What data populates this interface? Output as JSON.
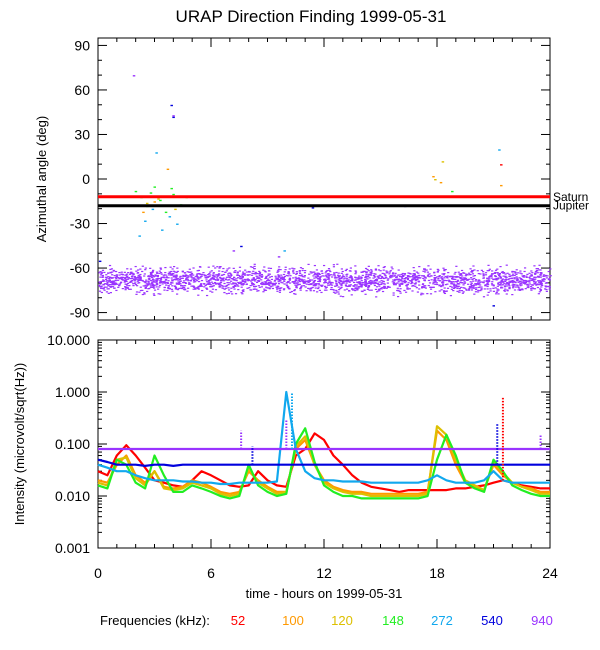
{
  "chart_data": {
    "title": "URAP Direction Finding  1999-05-31",
    "type": "scatter",
    "xlabel": "time - hours on 1999-05-31",
    "xlim": [
      0,
      24
    ],
    "xticks": [
      0,
      6,
      12,
      18,
      24
    ],
    "legend": {
      "label": "Frequencies (kHz):",
      "placement": "bottom",
      "entries": [
        {
          "name": "52",
          "color": "#ff0000"
        },
        {
          "name": "100",
          "color": "#ff9900"
        },
        {
          "name": "120",
          "color": "#ddc000"
        },
        {
          "name": "148",
          "color": "#22ee22"
        },
        {
          "name": "272",
          "color": "#11a8ee"
        },
        {
          "name": "540",
          "color": "#0000dd"
        },
        {
          "name": "940",
          "color": "#9933ff"
        }
      ]
    },
    "panels": [
      {
        "name": "azimuth",
        "type": "scatter",
        "ylabel": "Azimuthal angle (deg)",
        "ylim": [
          -95,
          95
        ],
        "yticks": [
          "90",
          "60",
          "30",
          "0",
          "-30",
          "-60",
          "-90"
        ],
        "reference_lines": [
          {
            "name": "Saturn",
            "y": -12,
            "color": "#ff0000"
          },
          {
            "name": "Jupiter",
            "y": -18,
            "color": "#000000"
          }
        ],
        "series": [
          {
            "name": "940",
            "description": "dense band of points",
            "x_range": [
              0,
              24
            ],
            "y_center": -68,
            "y_spread": 6
          },
          {
            "name": "148",
            "points": [
              [
                2.0,
                -8
              ],
              [
                2.3,
                -12
              ],
              [
                2.6,
                -18
              ],
              [
                3.0,
                -5
              ],
              [
                3.3,
                -14
              ],
              [
                3.6,
                -22
              ],
              [
                4.0,
                -10
              ],
              [
                4.4,
                -17
              ],
              [
                4.7,
                -12
              ],
              [
                2.8,
                -9
              ],
              [
                3.9,
                -6
              ],
              [
                18.8,
                -8
              ]
            ]
          },
          {
            "name": "272",
            "points": [
              [
                2.2,
                -38
              ],
              [
                2.5,
                -28
              ],
              [
                2.9,
                -20
              ],
              [
                3.1,
                18
              ],
              [
                3.4,
                -34
              ],
              [
                3.8,
                -25
              ],
              [
                4.2,
                -30
              ],
              [
                21.3,
                20
              ],
              [
                9.9,
                -48
              ]
            ]
          },
          {
            "name": "100",
            "points": [
              [
                2.4,
                -22
              ],
              [
                3.0,
                -15
              ],
              [
                3.7,
                7
              ],
              [
                17.8,
                2
              ],
              [
                18.2,
                -2
              ],
              [
                21.4,
                -4
              ]
            ]
          },
          {
            "name": "120",
            "points": [
              [
                2.6,
                -16
              ],
              [
                3.2,
                -13
              ],
              [
                4.1,
                -20
              ],
              [
                17.9,
                0
              ],
              [
                18.3,
                12
              ]
            ]
          },
          {
            "name": "540",
            "points": [
              [
                3.9,
                50
              ],
              [
                4.0,
                42
              ],
              [
                7.6,
                -45
              ],
              [
                16.3,
                -18
              ],
              [
                11.4,
                -19
              ],
              [
                21.0,
                -85
              ],
              [
                0.1,
                -55
              ]
            ]
          },
          {
            "name": "940",
            "points": [
              [
                1.9,
                70
              ],
              [
                4.0,
                43
              ],
              [
                7.2,
                -48
              ],
              [
                9.6,
                -52
              ],
              [
                13.9,
                -70
              ]
            ]
          },
          {
            "name": "52",
            "points": [
              [
                21.4,
                10
              ]
            ]
          }
        ]
      },
      {
        "name": "intensity",
        "type": "line",
        "yscale": "log",
        "ylabel": "Intensity (microvolt/sqrt(Hz))",
        "ylim": [
          0.001,
          10.0
        ],
        "yticks": [
          "10.000",
          "1.000",
          "0.100",
          "0.010",
          "0.001"
        ],
        "x": [
          0,
          0.5,
          1,
          1.5,
          2,
          2.5,
          3,
          3.5,
          4,
          4.5,
          5,
          5.5,
          6,
          6.5,
          7,
          7.5,
          8,
          8.5,
          9,
          9.5,
          10,
          10.5,
          11,
          11.5,
          12,
          12.5,
          13,
          13.5,
          14,
          14.5,
          15,
          15.5,
          16,
          16.5,
          17,
          17.5,
          18,
          18.5,
          19,
          19.5,
          20,
          20.5,
          21,
          21.5,
          22,
          22.5,
          23,
          23.5,
          24
        ],
        "series": [
          {
            "name": "52",
            "values": [
              0.03,
              0.025,
              0.06,
              0.095,
              0.06,
              0.035,
              0.02,
              0.018,
              0.016,
              0.015,
              0.02,
              0.03,
              0.025,
              0.02,
              0.016,
              0.015,
              0.016,
              0.03,
              0.02,
              0.016,
              0.015,
              0.06,
              0.08,
              0.16,
              0.12,
              0.06,
              0.04,
              0.025,
              0.018,
              0.015,
              0.014,
              0.013,
              0.012,
              0.013,
              0.013,
              0.013,
              0.013,
              0.013,
              0.014,
              0.014,
              0.015,
              0.016,
              0.018,
              0.02,
              0.018,
              0.016,
              0.015,
              0.014,
              0.014
            ]
          },
          {
            "name": "100",
            "values": [
              0.02,
              0.018,
              0.04,
              0.06,
              0.025,
              0.018,
              0.03,
              0.015,
              0.014,
              0.015,
              0.02,
              0.018,
              0.015,
              0.012,
              0.011,
              0.012,
              0.03,
              0.02,
              0.015,
              0.012,
              0.012,
              0.08,
              0.12,
              0.04,
              0.02,
              0.015,
              0.013,
              0.012,
              0.012,
              0.011,
              0.011,
              0.011,
              0.011,
              0.011,
              0.011,
              0.012,
              0.18,
              0.12,
              0.04,
              0.018,
              0.015,
              0.013,
              0.04,
              0.025,
              0.018,
              0.015,
              0.014,
              0.012,
              0.012
            ]
          },
          {
            "name": "120",
            "values": [
              0.018,
              0.016,
              0.05,
              0.055,
              0.022,
              0.016,
              0.03,
              0.014,
              0.013,
              0.014,
              0.018,
              0.016,
              0.014,
              0.011,
              0.01,
              0.011,
              0.035,
              0.018,
              0.014,
              0.011,
              0.012,
              0.09,
              0.14,
              0.04,
              0.018,
              0.014,
              0.012,
              0.011,
              0.011,
              0.01,
              0.01,
              0.01,
              0.01,
              0.01,
              0.01,
              0.011,
              0.22,
              0.15,
              0.05,
              0.02,
              0.016,
              0.013,
              0.045,
              0.028,
              0.018,
              0.015,
              0.013,
              0.011,
              0.011
            ]
          },
          {
            "name": "148",
            "values": [
              0.016,
              0.014,
              0.05,
              0.04,
              0.018,
              0.014,
              0.06,
              0.025,
              0.012,
              0.012,
              0.016,
              0.014,
              0.012,
              0.01,
              0.009,
              0.01,
              0.04,
              0.016,
              0.012,
              0.01,
              0.011,
              0.1,
              0.2,
              0.045,
              0.016,
              0.012,
              0.01,
              0.01,
              0.009,
              0.009,
              0.009,
              0.009,
              0.009,
              0.009,
              0.009,
              0.01,
              0.05,
              0.15,
              0.06,
              0.018,
              0.014,
              0.012,
              0.05,
              0.03,
              0.016,
              0.013,
              0.011,
              0.01,
              0.01
            ]
          },
          {
            "name": "272",
            "values": [
              0.04,
              0.035,
              0.03,
              0.03,
              0.025,
              0.022,
              0.02,
              0.02,
              0.02,
              0.019,
              0.019,
              0.018,
              0.018,
              0.017,
              0.017,
              0.018,
              0.018,
              0.018,
              0.018,
              0.019,
              1.0,
              0.08,
              0.03,
              0.022,
              0.02,
              0.02,
              0.019,
              0.019,
              0.019,
              0.018,
              0.018,
              0.018,
              0.018,
              0.018,
              0.018,
              0.02,
              0.025,
              0.02,
              0.018,
              0.018,
              0.018,
              0.02,
              0.03,
              0.02,
              0.018,
              0.018,
              0.018,
              0.018,
              0.018
            ]
          },
          {
            "name": "540",
            "values": [
              0.05,
              0.045,
              0.04,
              0.04,
              0.04,
              0.038,
              0.04,
              0.04,
              0.038,
              0.04,
              0.04,
              0.04,
              0.04,
              0.04,
              0.04,
              0.04,
              0.04,
              0.04,
              0.04,
              0.04,
              0.04,
              0.04,
              0.04,
              0.04,
              0.04,
              0.04,
              0.04,
              0.04,
              0.04,
              0.04,
              0.04,
              0.04,
              0.04,
              0.04,
              0.04,
              0.04,
              0.04,
              0.04,
              0.04,
              0.04,
              0.04,
              0.04,
              0.04,
              0.04,
              0.04,
              0.04,
              0.04,
              0.04,
              0.04
            ]
          },
          {
            "name": "940",
            "values": [
              0.08,
              0.08,
              0.08,
              0.08,
              0.08,
              0.08,
              0.08,
              0.08,
              0.08,
              0.08,
              0.08,
              0.08,
              0.08,
              0.08,
              0.08,
              0.08,
              0.08,
              0.08,
              0.08,
              0.08,
              0.08,
              0.08,
              0.08,
              0.08,
              0.08,
              0.08,
              0.08,
              0.08,
              0.08,
              0.08,
              0.08,
              0.08,
              0.08,
              0.08,
              0.08,
              0.08,
              0.08,
              0.08,
              0.08,
              0.08,
              0.08,
              0.08,
              0.08,
              0.08,
              0.08,
              0.08,
              0.08,
              0.08,
              0.08
            ]
          }
        ],
        "spikes": [
          {
            "series": "940",
            "x": 7.6,
            "y": 0.18
          },
          {
            "series": "540",
            "x": 8.2,
            "y": 0.09
          },
          {
            "series": "272",
            "x": 10.3,
            "y": 1.0
          },
          {
            "series": "940",
            "x": 10.0,
            "y": 0.3
          },
          {
            "series": "540",
            "x": 21.2,
            "y": 0.25
          },
          {
            "series": "52",
            "x": 21.5,
            "y": 0.8
          },
          {
            "series": "940",
            "x": 23.5,
            "y": 0.15
          }
        ]
      }
    ]
  }
}
